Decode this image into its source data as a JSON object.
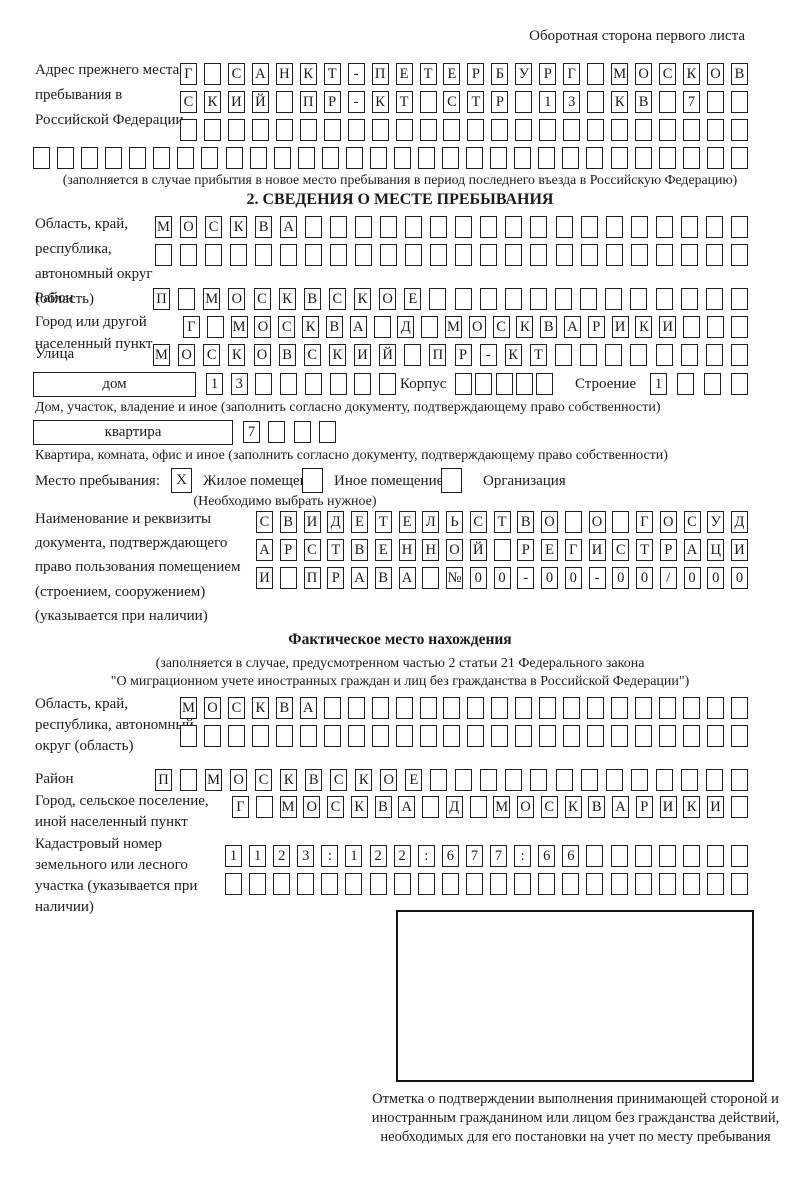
{
  "page": {
    "header_note": "Оборотная сторона первого листа"
  },
  "prev_address": {
    "label": "Адрес прежнего места пребывания в Российской Федерации",
    "rows": [
      {
        "count": 24,
        "text": "Г САНКТ-ПЕТЕРБУРГ МОСКОВ"
      },
      {
        "count": 24,
        "text": "СКИЙ ПР-КТ СТР 13 КВ 7"
      },
      {
        "count": 24,
        "text": ""
      },
      {
        "count": 30,
        "text": ""
      }
    ],
    "note": "(заполняется в случае прибытия в новое место пребывания в период последнего въезда в Российскую Федерацию)"
  },
  "section2": {
    "title": "2. СВЕДЕНИЯ О МЕСТЕ ПРЕБЫВАНИЯ",
    "oblast": {
      "label": "Область, край, республика, автономный округ (область)",
      "rows": [
        {
          "count": 24,
          "text": "МОСКВА"
        },
        {
          "count": 24,
          "text": ""
        }
      ]
    },
    "raion": {
      "label": "Район",
      "row": {
        "count": 24,
        "text": "П МОСКВСКОЕ"
      }
    },
    "gorod": {
      "label": "Город или другой населенный пункт",
      "row": {
        "count": 24,
        "text": "Г МОСКВА Д МОСКВАРИКИ"
      }
    },
    "ulitsa": {
      "label": "Улица",
      "row": {
        "count": 24,
        "text": "МОСКОВСКИЙ ПР-КТ"
      }
    },
    "dom": {
      "box_label": "дом",
      "row": {
        "count": 8,
        "text": "13"
      },
      "korpus_label": "Корпус",
      "korpus_row": {
        "count": 5,
        "text": ""
      },
      "stroenie_label": "Строение",
      "stroenie_row": {
        "count": 4,
        "text": "1"
      }
    },
    "dom_note": "Дом, участок, владение и иное (заполнить согласно документу, подтверждающему право собственности)",
    "kvartira": {
      "box_label": "квартира",
      "row": {
        "count": 4,
        "text": "7"
      }
    },
    "kvartira_note": "Квартира, комната, офис и иное (заполнить согласно документу, подтверждающему право собственности)",
    "mesto": {
      "label": "Место пребывания:",
      "options": [
        {
          "label": "Жилое помещение",
          "checked": "X"
        },
        {
          "label": "Иное помещение",
          "checked": ""
        },
        {
          "label": "Организация",
          "checked": ""
        }
      ],
      "note": "(Необходимо выбрать нужное)"
    },
    "doc": {
      "label": "Наименование и реквизиты документа, подтверждающего право пользования помещением (строением, сооружением) (указывается при наличии)",
      "rows": [
        {
          "count": 21,
          "text": "СВИДЕТЕЛЬСТВО О ГОСУД"
        },
        {
          "count": 21,
          "text": "АРСТВЕННОЙ РЕГИСТРАЦИ"
        },
        {
          "count": 21,
          "text": "И ПРАВА №00-00-00/000"
        }
      ]
    }
  },
  "fact": {
    "title": "Фактическое место нахождения",
    "note1": "(заполняется в случае, предусмотренном частью 2 статьи 21 Федерального закона",
    "note2": "\"О миграционном учете иностранных граждан и лиц без гражданства в Российской Федерации\")",
    "oblast": {
      "label": "Область, край, республика, автономный округ (область)",
      "rows": [
        {
          "count": 24,
          "text": "МОСКВА"
        },
        {
          "count": 24,
          "text": ""
        }
      ]
    },
    "raion": {
      "label": "Район",
      "row": {
        "count": 24,
        "text": "П МОСКВСКОЕ"
      }
    },
    "gorod": {
      "label": "Город, сельское поселение, иной населенный пункт",
      "row": {
        "count": 22,
        "text": "Г МОСКВА Д МОСКВАРИКИ"
      }
    },
    "kadastr": {
      "label": "Кадастровый номер земельного или лесного участка (указывается при наличии)",
      "rows": [
        {
          "count": 22,
          "text": "1123:122:677:66"
        },
        {
          "count": 22,
          "text": ""
        }
      ]
    },
    "stamp_note": "Отметка о подтверждении выполнения принимающей стороной и иностранным гражданином или лицом без гражданства действий, необходимых для его постановки на учет по месту пребывания"
  }
}
